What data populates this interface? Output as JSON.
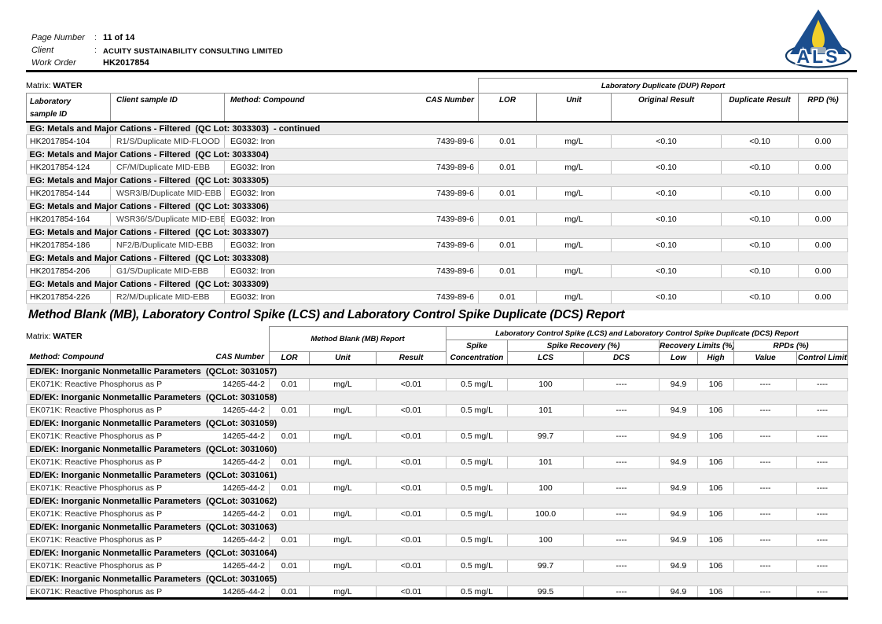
{
  "page_header": {
    "fields": [
      {
        "label": "Page Number",
        "separator": ":",
        "value": "11 of 14"
      },
      {
        "label": "Client",
        "separator": ":",
        "value": "ACUITY SUSTAINABILITY CONSULTING LIMITED"
      },
      {
        "label": "Work Order",
        "separator": "",
        "value": "HK2017854"
      }
    ],
    "logo": {
      "text": "ALS",
      "triangle_color": "#1b4e8e",
      "flame_color": "#f2cf2a",
      "candle_color": "#9cabb9",
      "ellipse_color": "#123a66",
      "text_color": "#1b4e8e"
    }
  },
  "dup_table": {
    "matrix_prefix": "Matrix: ",
    "matrix_value": "WATER",
    "group_header": "Laboratory Duplicate (DUP) Report",
    "columns": [
      "Laboratory\nsample ID",
      "Client sample ID",
      "Method: Compound",
      "CAS Number",
      "LOR",
      "Unit",
      "Original Result",
      "Duplicate Result",
      "RPD (%)"
    ],
    "groups": [
      {
        "title": "EG: Metals and Major Cations - Filtered  (QC Lot: 3033303)  - continued",
        "rows": [
          [
            "HK2017854-104",
            "R1/S/Duplicate MID-FLOOD",
            "EG032: Iron",
            "7439-89-6",
            "0.01",
            "mg/L",
            "<0.10",
            "<0.10",
            "0.00"
          ]
        ]
      },
      {
        "title": "EG: Metals and Major Cations - Filtered  (QC Lot: 3033304)",
        "rows": [
          [
            "HK2017854-124",
            "CF/M/Duplicate MID-EBB",
            "EG032: Iron",
            "7439-89-6",
            "0.01",
            "mg/L",
            "<0.10",
            "<0.10",
            "0.00"
          ]
        ]
      },
      {
        "title": "EG: Metals and Major Cations - Filtered  (QC Lot: 3033305)",
        "rows": [
          [
            "HK2017854-144",
            "WSR3/B/Duplicate MID-EBB",
            "EG032: Iron",
            "7439-89-6",
            "0.01",
            "mg/L",
            "<0.10",
            "<0.10",
            "0.00"
          ]
        ]
      },
      {
        "title": "EG: Metals and Major Cations - Filtered  (QC Lot: 3033306)",
        "rows": [
          [
            "HK2017854-164",
            "WSR36/S/Duplicate MID-EBB",
            "EG032: Iron",
            "7439-89-6",
            "0.01",
            "mg/L",
            "<0.10",
            "<0.10",
            "0.00"
          ]
        ]
      },
      {
        "title": "EG: Metals and Major Cations - Filtered  (QC Lot: 3033307)",
        "rows": [
          [
            "HK2017854-186",
            "NF2/B/Duplicate MID-EBB",
            "EG032: Iron",
            "7439-89-6",
            "0.01",
            "mg/L",
            "<0.10",
            "<0.10",
            "0.00"
          ]
        ]
      },
      {
        "title": "EG: Metals and Major Cations - Filtered  (QC Lot: 3033308)",
        "rows": [
          [
            "HK2017854-206",
            "G1/S/Duplicate MID-EBB",
            "EG032: Iron",
            "7439-89-6",
            "0.01",
            "mg/L",
            "<0.10",
            "<0.10",
            "0.00"
          ]
        ]
      },
      {
        "title": "EG: Metals and Major Cations - Filtered  (QC Lot: 3033309)",
        "rows": [
          [
            "HK2017854-226",
            "R2/M/Duplicate MID-EBB",
            "EG032: Iron",
            "7439-89-6",
            "0.01",
            "mg/L",
            "<0.10",
            "<0.10",
            "0.00"
          ]
        ]
      }
    ]
  },
  "section2_title": "Method Blank (MB), Laboratory Control Spike (LCS) and Laboratory Control Spike Duplicate (DCS) Report",
  "mb_table": {
    "matrix_prefix": "Matrix: ",
    "matrix_value": "WATER",
    "mb_header": "Method Blank (MB) Report",
    "lcs_header": "Laboratory Control Spike (LCS) and Laboratory Control Spike Duplicate (DCS) Report",
    "spike_conc_header": "Spike\nConcentration",
    "spike_recovery_header": "Spike Recovery (%)",
    "recovery_limits_header": "Recovery Limits (%)",
    "rpds_header": "RPDs (%)",
    "columns": [
      "Method: Compound",
      "CAS Number",
      "LOR",
      "Unit",
      "Result",
      "LCS",
      "DCS",
      "Low",
      "High",
      "Value",
      "Control Limit"
    ],
    "groups": [
      {
        "title": "ED/EK: Inorganic Nonmetallic Parameters  (QCLot: 3031057)",
        "rows": [
          [
            "EK071K: Reactive Phosphorus as P",
            "14265-44-2",
            "0.01",
            "mg/L",
            "<0.01",
            "0.5 mg/L",
            "100",
            "----",
            "94.9",
            "106",
            "----",
            "----"
          ]
        ]
      },
      {
        "title": "ED/EK: Inorganic Nonmetallic Parameters  (QCLot: 3031058)",
        "rows": [
          [
            "EK071K: Reactive Phosphorus as P",
            "14265-44-2",
            "0.01",
            "mg/L",
            "<0.01",
            "0.5 mg/L",
            "101",
            "----",
            "94.9",
            "106",
            "----",
            "----"
          ]
        ]
      },
      {
        "title": "ED/EK: Inorganic Nonmetallic Parameters  (QCLot: 3031059)",
        "rows": [
          [
            "EK071K: Reactive Phosphorus as P",
            "14265-44-2",
            "0.01",
            "mg/L",
            "<0.01",
            "0.5 mg/L",
            "99.7",
            "----",
            "94.9",
            "106",
            "----",
            "----"
          ]
        ]
      },
      {
        "title": "ED/EK: Inorganic Nonmetallic Parameters  (QCLot: 3031060)",
        "rows": [
          [
            "EK071K: Reactive Phosphorus as P",
            "14265-44-2",
            "0.01",
            "mg/L",
            "<0.01",
            "0.5 mg/L",
            "101",
            "----",
            "94.9",
            "106",
            "----",
            "----"
          ]
        ]
      },
      {
        "title": "ED/EK: Inorganic Nonmetallic Parameters  (QCLot: 3031061)",
        "rows": [
          [
            "EK071K: Reactive Phosphorus as P",
            "14265-44-2",
            "0.01",
            "mg/L",
            "<0.01",
            "0.5 mg/L",
            "100",
            "----",
            "94.9",
            "106",
            "----",
            "----"
          ]
        ]
      },
      {
        "title": "ED/EK: Inorganic Nonmetallic Parameters  (QCLot: 3031062)",
        "rows": [
          [
            "EK071K: Reactive Phosphorus as P",
            "14265-44-2",
            "0.01",
            "mg/L",
            "<0.01",
            "0.5 mg/L",
            "100.0",
            "----",
            "94.9",
            "106",
            "----",
            "----"
          ]
        ]
      },
      {
        "title": "ED/EK: Inorganic Nonmetallic Parameters  (QCLot: 3031063)",
        "rows": [
          [
            "EK071K: Reactive Phosphorus as P",
            "14265-44-2",
            "0.01",
            "mg/L",
            "<0.01",
            "0.5 mg/L",
            "100",
            "----",
            "94.9",
            "106",
            "----",
            "----"
          ]
        ]
      },
      {
        "title": "ED/EK: Inorganic Nonmetallic Parameters  (QCLot: 3031064)",
        "rows": [
          [
            "EK071K: Reactive Phosphorus as P",
            "14265-44-2",
            "0.01",
            "mg/L",
            "<0.01",
            "0.5 mg/L",
            "99.7",
            "----",
            "94.9",
            "106",
            "----",
            "----"
          ]
        ]
      },
      {
        "title": "ED/EK: Inorganic Nonmetallic Parameters  (QCLot: 3031065)",
        "rows": [
          [
            "EK071K: Reactive Phosphorus as P",
            "14265-44-2",
            "0.01",
            "mg/L",
            "<0.01",
            "0.5 mg/L",
            "99.5",
            "----",
            "94.9",
            "106",
            "----",
            "----"
          ]
        ]
      }
    ]
  }
}
